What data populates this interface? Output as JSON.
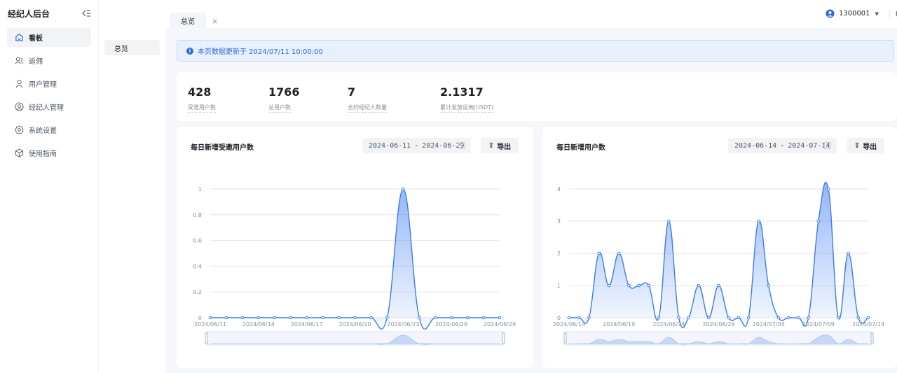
{
  "sidebar": {
    "brand": "经纪人后台",
    "items": [
      {
        "label": "看板",
        "active": true
      },
      {
        "label": "返佣",
        "active": false
      },
      {
        "label": "用户管理",
        "active": false
      },
      {
        "label": "经纪人管理",
        "active": false
      },
      {
        "label": "系统设置",
        "active": false
      },
      {
        "label": "使用指南",
        "active": false
      }
    ]
  },
  "submenu": {
    "item": "总览"
  },
  "topbar": {
    "tab": "总览",
    "tab_close": "×",
    "user": "1300001"
  },
  "notice": {
    "text": "本页数据更新于 2024/07/11 10:00:00"
  },
  "stats": [
    {
      "value": "428",
      "label": "受邀用户数"
    },
    {
      "value": "1766",
      "label": "总用户数"
    },
    {
      "value": "7",
      "label": "合约经纪人数量"
    },
    {
      "value": "2.1317",
      "label": "累计发放返佣(USDT)"
    }
  ],
  "cards": [
    {
      "title": "每日新增受邀用户数",
      "start": "2024-06-11",
      "end": "2024-06-29",
      "export_label": "导出"
    },
    {
      "title": "每日新增用户数",
      "start": "2024-06-14",
      "end": "2024-07-14",
      "export_label": "导出"
    }
  ],
  "chart_data": [
    {
      "type": "area",
      "title": "每日新增受邀用户数",
      "ylim": [
        0,
        1
      ],
      "y_ticks": [
        "0",
        "0.2",
        "0.4",
        "0.6",
        "0.8",
        "1"
      ],
      "x_ticks": [
        "2024/06/11",
        "2024/06/14",
        "2024/06/17",
        "2024/06/20",
        "2024/06/23",
        "2024/06/26",
        "2024/06/29"
      ],
      "x": [
        "2024/06/11",
        "2024/06/12",
        "2024/06/13",
        "2024/06/14",
        "2024/06/15",
        "2024/06/16",
        "2024/06/17",
        "2024/06/18",
        "2024/06/19",
        "2024/06/20",
        "2024/06/21",
        "2024/06/22",
        "2024/06/23",
        "2024/06/24",
        "2024/06/25",
        "2024/06/26",
        "2024/06/27",
        "2024/06/28",
        "2024/06/29"
      ],
      "values": [
        0,
        0,
        0,
        0,
        0,
        0,
        0,
        0,
        0,
        0,
        0,
        0,
        1,
        0,
        0,
        0,
        0,
        0,
        0
      ],
      "color": "#3b7cf0",
      "grid": true
    },
    {
      "type": "area",
      "title": "每日新增用户数",
      "ylim": [
        0,
        4
      ],
      "y_ticks": [
        "0",
        "1",
        "2",
        "3",
        "4"
      ],
      "x_ticks": [
        "2024/06/14",
        "2024/06/19",
        "2024/06/24",
        "2024/06/29",
        "2024/07/04",
        "2024/07/09",
        "2024/07/14"
      ],
      "x": [
        "2024/06/14",
        "2024/06/15",
        "2024/06/16",
        "2024/06/17",
        "2024/06/18",
        "2024/06/19",
        "2024/06/20",
        "2024/06/21",
        "2024/06/22",
        "2024/06/23",
        "2024/06/24",
        "2024/06/25",
        "2024/06/26",
        "2024/06/27",
        "2024/06/28",
        "2024/06/29",
        "2024/06/30",
        "2024/07/01",
        "2024/07/02",
        "2024/07/03",
        "2024/07/04",
        "2024/07/05",
        "2024/07/06",
        "2024/07/07",
        "2024/07/08",
        "2024/07/09",
        "2024/07/10",
        "2024/07/11",
        "2024/07/12",
        "2024/07/13",
        "2024/07/14"
      ],
      "values": [
        0,
        0,
        0,
        2,
        1,
        2,
        1,
        1,
        1,
        0,
        3,
        0,
        0,
        1,
        0,
        1,
        0,
        0,
        0,
        3,
        1,
        0,
        0,
        0,
        0,
        3,
        4,
        0,
        2,
        0,
        0
      ],
      "color": "#3b7cf0",
      "grid": true
    }
  ]
}
